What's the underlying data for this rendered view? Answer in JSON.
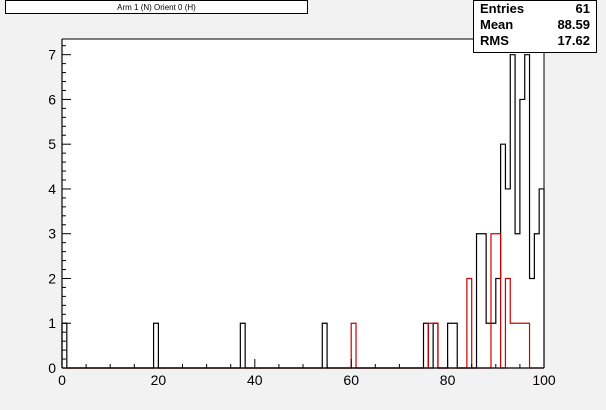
{
  "title": "Arm 1 (N) Orient 0 (H)",
  "stats": [
    {
      "label": "Entries",
      "value": "61"
    },
    {
      "label": "Mean",
      "value": "88.59"
    },
    {
      "label": "RMS",
      "value": "17.62"
    }
  ],
  "colors": {
    "background": "#f2f2f2",
    "series1": "#000000",
    "series2": "#cc0000"
  },
  "chart_data": {
    "type": "histogram",
    "xlim": [
      0,
      100
    ],
    "ylim": [
      0,
      7.35
    ],
    "bin_width": 1,
    "x_ticks": [
      0,
      20,
      40,
      60,
      80,
      100
    ],
    "x_tick_labels": [
      "0",
      "20",
      "40",
      "60",
      "80",
      "100"
    ],
    "y_ticks": [
      0,
      1,
      2,
      3,
      4,
      5,
      6,
      7
    ],
    "y_tick_labels": [
      "0",
      "1",
      "2",
      "3",
      "4",
      "5",
      "6",
      "7"
    ],
    "series": [
      {
        "color": "#000000",
        "bins": [
          {
            "x": 0,
            "y": 1
          },
          {
            "x": 19,
            "y": 1
          },
          {
            "x": 37,
            "y": 1
          },
          {
            "x": 54,
            "y": 1
          },
          {
            "x": 75,
            "y": 1
          },
          {
            "x": 77,
            "y": 1
          },
          {
            "x": 80,
            "y": 1
          },
          {
            "x": 81,
            "y": 1
          },
          {
            "x": 86,
            "y": 3
          },
          {
            "x": 87,
            "y": 3
          },
          {
            "x": 88,
            "y": 1
          },
          {
            "x": 89,
            "y": 1
          },
          {
            "x": 90,
            "y": 2
          },
          {
            "x": 91,
            "y": 5
          },
          {
            "x": 92,
            "y": 4
          },
          {
            "x": 93,
            "y": 7
          },
          {
            "x": 94,
            "y": 3
          },
          {
            "x": 95,
            "y": 6
          },
          {
            "x": 96,
            "y": 7
          },
          {
            "x": 97,
            "y": 2
          },
          {
            "x": 98,
            "y": 3
          },
          {
            "x": 99,
            "y": 4
          }
        ]
      },
      {
        "color": "#cc0000",
        "bins": [
          {
            "x": 60,
            "y": 1
          },
          {
            "x": 76,
            "y": 1
          },
          {
            "x": 77,
            "y": 1
          },
          {
            "x": 84,
            "y": 2
          },
          {
            "x": 89,
            "y": 3
          },
          {
            "x": 90,
            "y": 3
          },
          {
            "x": 92,
            "y": 2
          },
          {
            "x": 93,
            "y": 1
          },
          {
            "x": 94,
            "y": 1
          },
          {
            "x": 95,
            "y": 1
          },
          {
            "x": 96,
            "y": 1
          }
        ]
      }
    ]
  }
}
